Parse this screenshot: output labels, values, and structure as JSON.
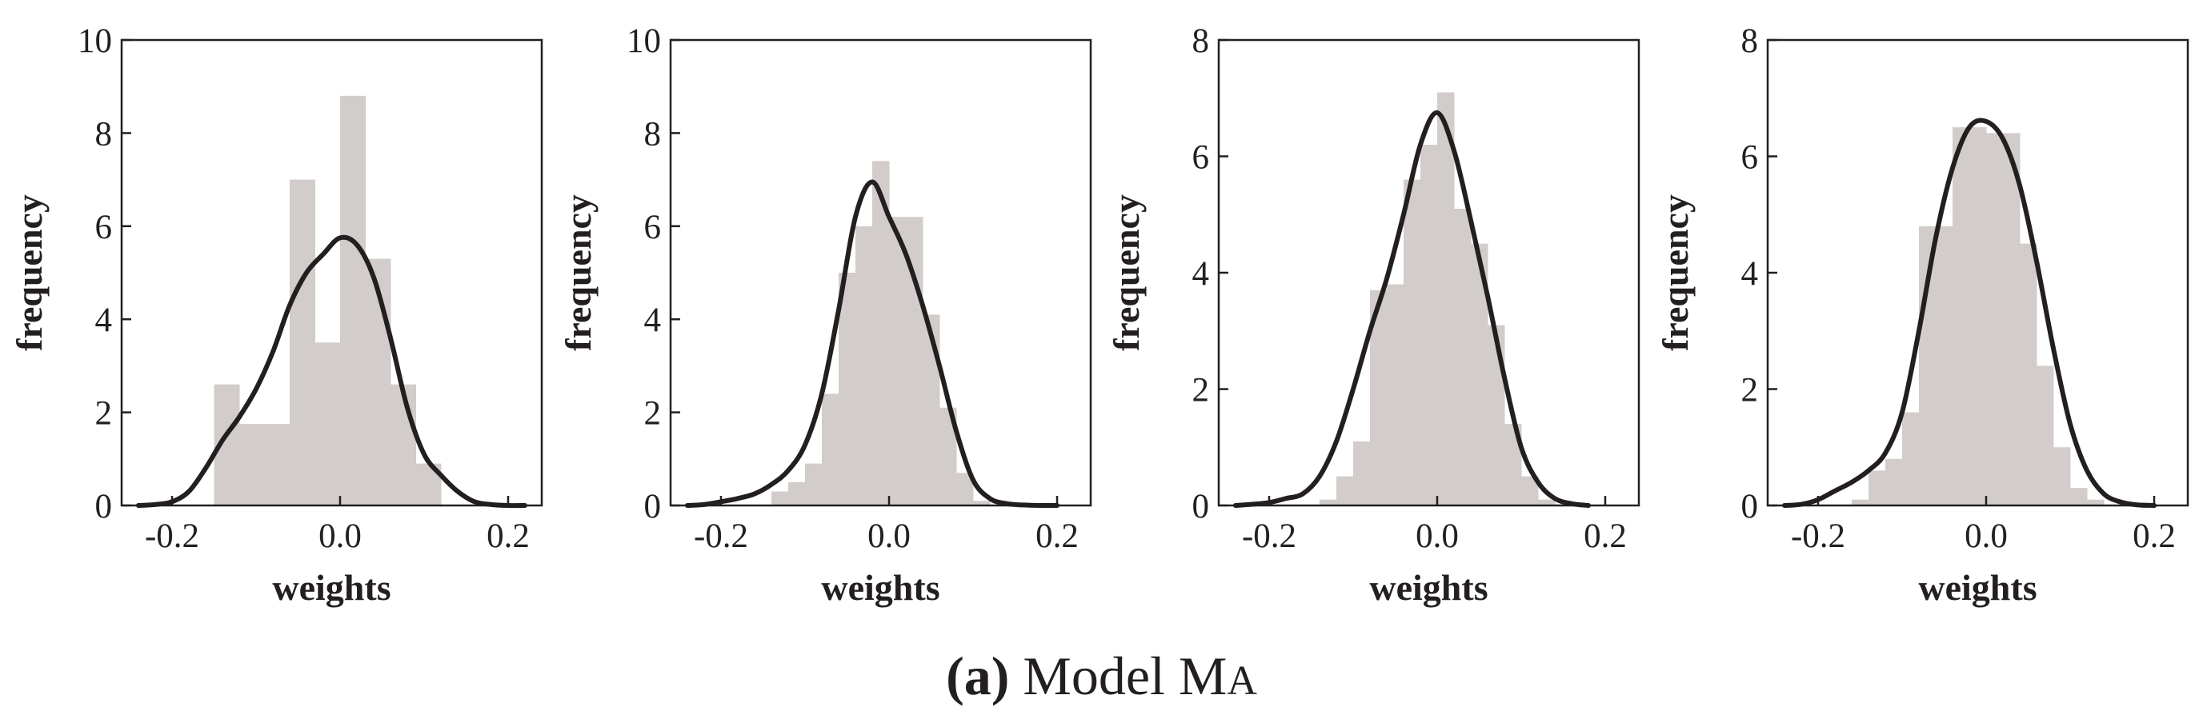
{
  "chart_data": [
    {
      "type": "bar",
      "overlay": "kde",
      "xlabel": "weights",
      "ylabel": "frequency",
      "xlim": [
        -0.26,
        0.24
      ],
      "ylim": [
        0,
        10
      ],
      "xticks": [
        -0.2,
        0.0,
        0.2
      ],
      "xtick_labels": [
        "-0.2",
        "0.0",
        "0.2"
      ],
      "yticks": [
        0,
        2,
        4,
        6,
        8,
        10
      ],
      "ytick_labels": [
        "0",
        "2",
        "4",
        "6",
        "8",
        "10"
      ],
      "bin_edges": [
        -0.15,
        -0.12,
        -0.09,
        -0.06,
        -0.03,
        0.0,
        0.03,
        0.06,
        0.09,
        0.12
      ],
      "values": [
        2.6,
        1.75,
        1.75,
        7.0,
        3.5,
        8.8,
        5.3,
        2.6,
        0.9
      ],
      "kde": {
        "x": [
          -0.24,
          -0.22,
          -0.2,
          -0.18,
          -0.16,
          -0.14,
          -0.12,
          -0.1,
          -0.08,
          -0.06,
          -0.04,
          -0.02,
          0.0,
          0.02,
          0.04,
          0.06,
          0.08,
          0.1,
          0.12,
          0.14,
          0.16,
          0.18,
          0.2,
          0.22
        ],
        "y": [
          0.0,
          0.02,
          0.08,
          0.3,
          0.8,
          1.4,
          1.9,
          2.5,
          3.3,
          4.3,
          5.0,
          5.4,
          5.75,
          5.6,
          4.9,
          3.6,
          2.1,
          1.1,
          0.65,
          0.3,
          0.08,
          0.02,
          0.0,
          0.0
        ]
      }
    },
    {
      "type": "bar",
      "overlay": "kde",
      "xlabel": "weights",
      "ylabel": "frequency",
      "xlim": [
        -0.26,
        0.24
      ],
      "ylim": [
        0,
        10
      ],
      "xticks": [
        -0.2,
        0.0,
        0.2
      ],
      "xtick_labels": [
        "-0.2",
        "0.0",
        "0.2"
      ],
      "yticks": [
        0,
        2,
        4,
        6,
        8,
        10
      ],
      "ytick_labels": [
        "0",
        "2",
        "4",
        "6",
        "8",
        "10"
      ],
      "bin_edges": [
        -0.14,
        -0.12,
        -0.1,
        -0.08,
        -0.06,
        -0.04,
        -0.02,
        0.0,
        0.02,
        0.04,
        0.06,
        0.08,
        0.1,
        0.12
      ],
      "values": [
        0.3,
        0.5,
        0.9,
        2.4,
        5.0,
        6.0,
        7.4,
        6.2,
        6.2,
        4.1,
        2.1,
        0.7,
        0.1
      ],
      "kde": {
        "x": [
          -0.24,
          -0.22,
          -0.2,
          -0.18,
          -0.16,
          -0.14,
          -0.12,
          -0.1,
          -0.08,
          -0.06,
          -0.04,
          -0.02,
          0.0,
          0.02,
          0.04,
          0.06,
          0.08,
          0.1,
          0.12,
          0.14,
          0.16,
          0.18,
          0.2
        ],
        "y": [
          0.0,
          0.02,
          0.08,
          0.15,
          0.25,
          0.45,
          0.75,
          1.3,
          2.4,
          4.2,
          6.2,
          6.95,
          6.2,
          5.4,
          4.3,
          3.0,
          1.6,
          0.55,
          0.15,
          0.04,
          0.01,
          0.0,
          0.0
        ]
      }
    },
    {
      "type": "bar",
      "overlay": "kde",
      "xlabel": "weights",
      "ylabel": "frequency",
      "xlim": [
        -0.26,
        0.24
      ],
      "ylim": [
        0,
        8
      ],
      "xticks": [
        -0.2,
        0.0,
        0.2
      ],
      "xtick_labels": [
        "-0.2",
        "0.0",
        "0.2"
      ],
      "yticks": [
        0,
        2,
        4,
        6,
        8
      ],
      "ytick_labels": [
        "0",
        "2",
        "4",
        "6",
        "8"
      ],
      "bin_edges": [
        -0.14,
        -0.12,
        -0.1,
        -0.08,
        -0.06,
        -0.04,
        -0.02,
        0.0,
        0.02,
        0.04,
        0.06,
        0.08,
        0.1,
        0.12,
        0.14
      ],
      "values": [
        0.1,
        0.5,
        1.1,
        3.7,
        3.8,
        5.6,
        6.2,
        7.1,
        5.1,
        4.5,
        3.1,
        1.4,
        0.5,
        0.1
      ],
      "kde": {
        "x": [
          -0.24,
          -0.22,
          -0.2,
          -0.18,
          -0.16,
          -0.14,
          -0.12,
          -0.1,
          -0.08,
          -0.06,
          -0.04,
          -0.02,
          0.0,
          0.02,
          0.04,
          0.06,
          0.08,
          0.1,
          0.12,
          0.14,
          0.16,
          0.18
        ],
        "y": [
          0.0,
          0.02,
          0.05,
          0.12,
          0.2,
          0.5,
          1.1,
          2.0,
          3.0,
          3.9,
          5.0,
          6.2,
          6.75,
          6.1,
          4.9,
          3.6,
          2.2,
          1.0,
          0.4,
          0.12,
          0.03,
          0.0
        ]
      }
    },
    {
      "type": "bar",
      "overlay": "kde",
      "xlabel": "weights",
      "ylabel": "frequency",
      "xlim": [
        -0.26,
        0.24
      ],
      "ylim": [
        0,
        8
      ],
      "xticks": [
        -0.2,
        0.0,
        0.2
      ],
      "xtick_labels": [
        "-0.2",
        "0.0",
        "0.2"
      ],
      "yticks": [
        0,
        2,
        4,
        6,
        8
      ],
      "ytick_labels": [
        "0",
        "2",
        "4",
        "6",
        "8"
      ],
      "bin_edges": [
        -0.16,
        -0.14,
        -0.12,
        -0.1,
        -0.08,
        -0.06,
        -0.04,
        -0.02,
        0.0,
        0.02,
        0.04,
        0.06,
        0.08,
        0.1,
        0.12,
        0.14
      ],
      "values": [
        0.1,
        0.6,
        0.8,
        1.6,
        4.8,
        4.8,
        6.5,
        6.5,
        6.4,
        6.4,
        4.5,
        2.4,
        1.0,
        0.3,
        0.1
      ],
      "kde": {
        "x": [
          -0.24,
          -0.22,
          -0.2,
          -0.18,
          -0.16,
          -0.14,
          -0.12,
          -0.1,
          -0.08,
          -0.06,
          -0.04,
          -0.02,
          0.0,
          0.02,
          0.04,
          0.06,
          0.08,
          0.1,
          0.12,
          0.14,
          0.16,
          0.18,
          0.2
        ],
        "y": [
          0.0,
          0.02,
          0.1,
          0.25,
          0.4,
          0.6,
          0.9,
          1.6,
          3.0,
          4.6,
          5.8,
          6.5,
          6.6,
          6.3,
          5.5,
          4.2,
          2.7,
          1.4,
          0.6,
          0.2,
          0.06,
          0.01,
          0.0
        ]
      }
    }
  ],
  "caption": {
    "label": "(a)",
    "text": "Model M",
    "subscript": "A"
  }
}
